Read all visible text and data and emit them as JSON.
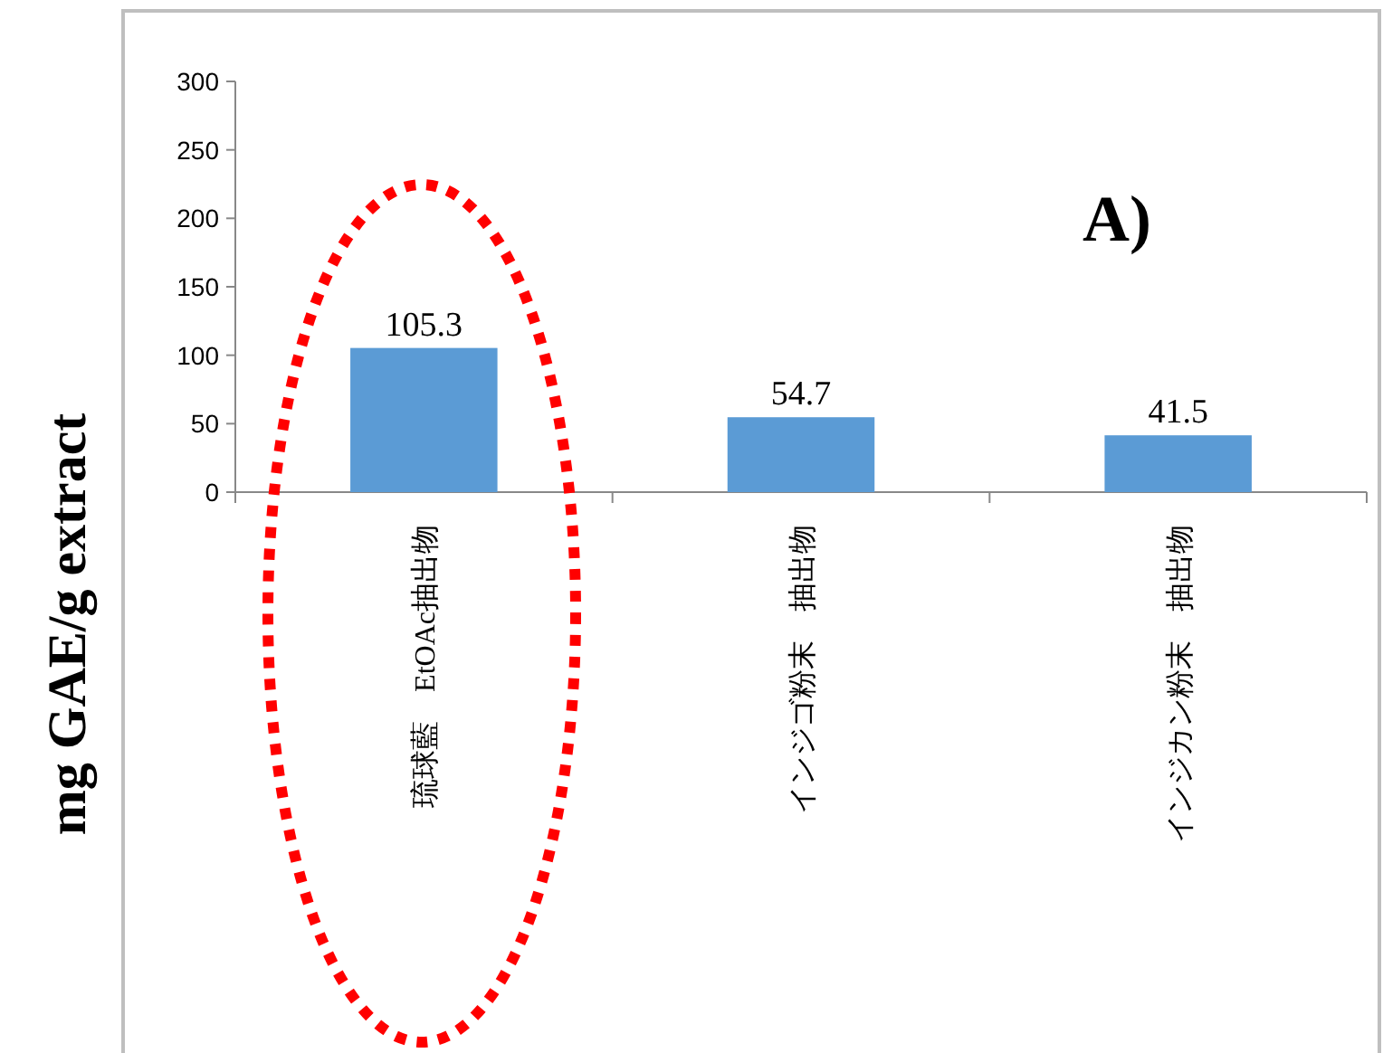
{
  "chart_data": {
    "type": "bar",
    "categories": [
      "琉球藍　EtOAc抽出物",
      "インジゴ粉末　抽出物",
      "インジカン粉末　抽出物"
    ],
    "values": [
      105.3,
      54.7,
      41.5
    ],
    "color": "#5b9bd5",
    "ylabel": "mg GAE/g extract",
    "ylim": [
      0,
      300
    ],
    "yticks": [
      0,
      50,
      100,
      150,
      200,
      250,
      300
    ],
    "annotations": [
      "A)"
    ],
    "data_labels": true,
    "grid": false
  }
}
